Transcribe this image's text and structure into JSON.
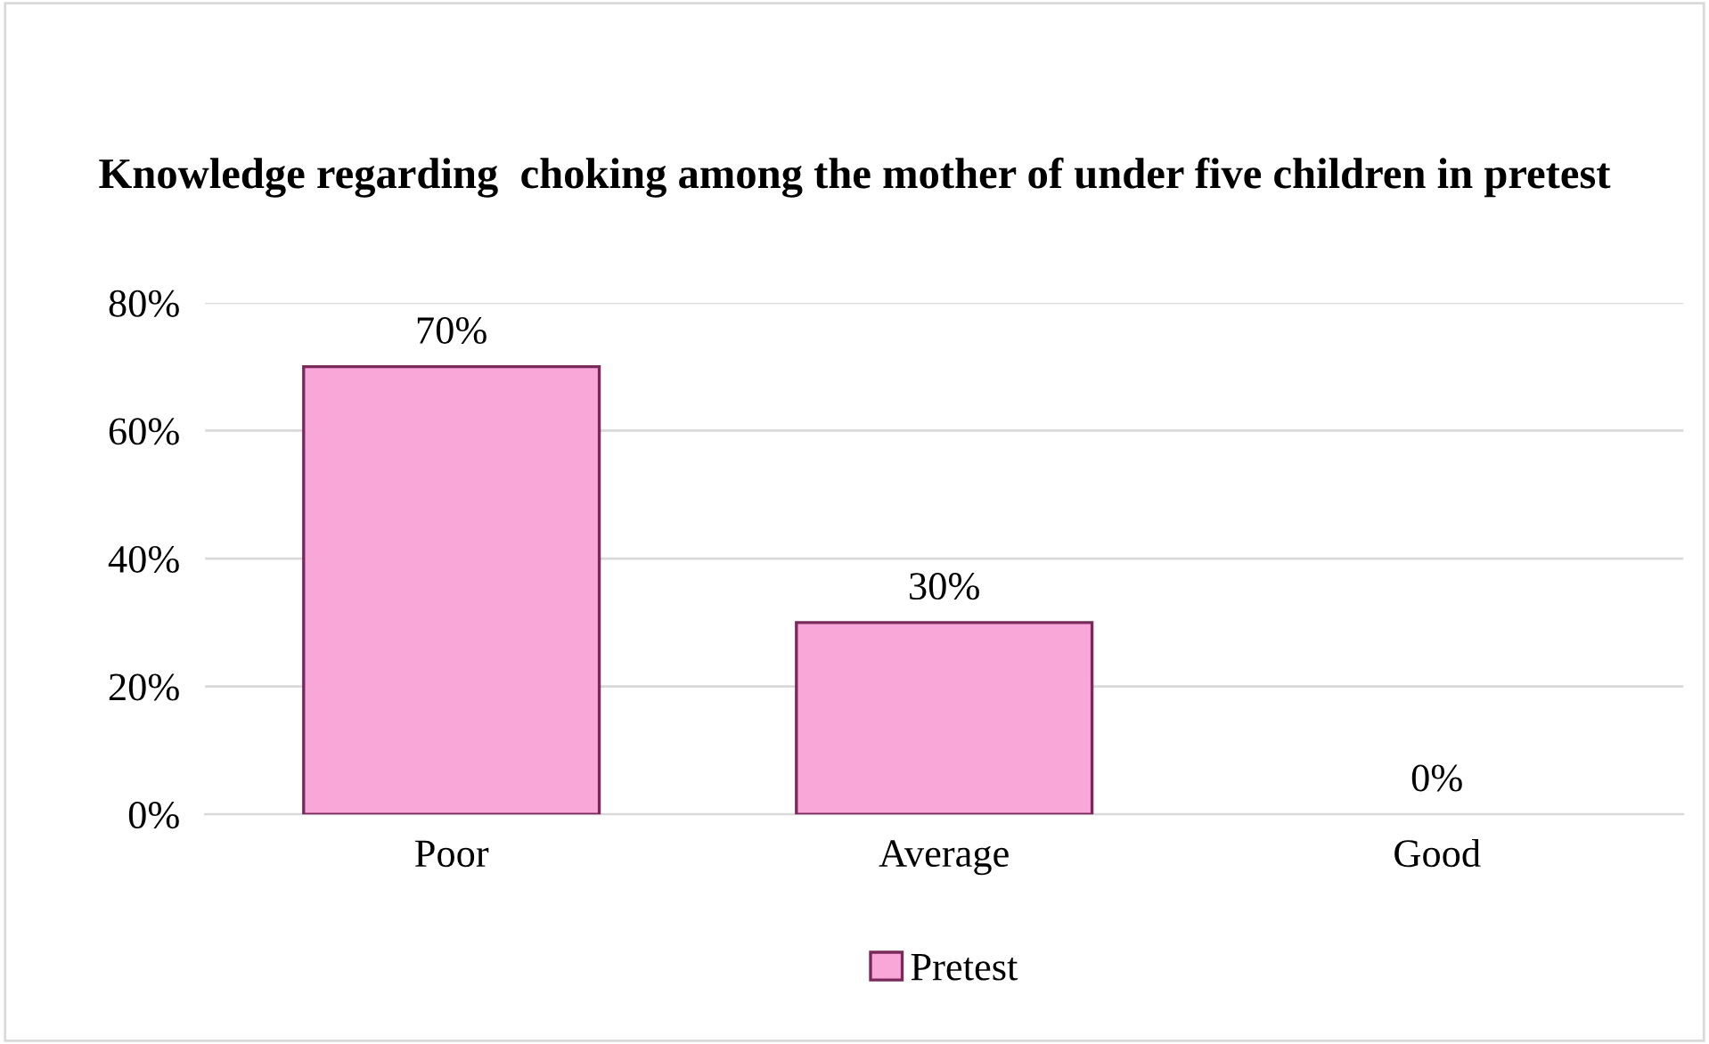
{
  "chart_data": {
    "type": "bar",
    "title": "Knowledge regarding  choking among the mother of under five children in pretest",
    "categories": [
      "Poor",
      "Average",
      "Good"
    ],
    "series": [
      {
        "name": "Pretest",
        "color": "#f9a6d9",
        "values": [
          70,
          30,
          0
        ],
        "value_labels": [
          "70%",
          "30%",
          "0%"
        ]
      }
    ],
    "ylim": [
      0,
      80
    ],
    "yticks": [
      {
        "value": 0,
        "label": "0%"
      },
      {
        "value": 20,
        "label": "20%"
      },
      {
        "value": 40,
        "label": "40%"
      },
      {
        "value": 60,
        "label": "60%"
      },
      {
        "value": 80,
        "label": "80%"
      }
    ],
    "grid": "y",
    "legend": "bottom"
  }
}
